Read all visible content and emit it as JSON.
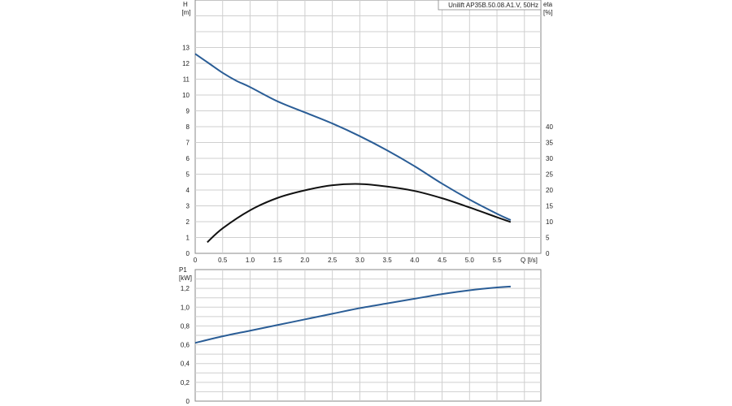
{
  "chart_data": [
    {
      "type": "line",
      "title": "Unilift AP35B.50.08.A1.V, 50Hz",
      "xlabel": "Q [l/s]",
      "ylabel": "H\n[m]",
      "ylabel_right": "eta\n[%]",
      "x_ticks": [
        "0",
        "0.5",
        "1.0",
        "1.5",
        "2.0",
        "2.5",
        "3.0",
        "3.5",
        "4.0",
        "4.5",
        "5.0",
        "5.5"
      ],
      "y_ticks": [
        "0",
        "1",
        "2",
        "3",
        "4",
        "5",
        "6",
        "7",
        "8",
        "9",
        "10",
        "11",
        "12",
        "13"
      ],
      "y2_ticks": [
        "0",
        "5",
        "10",
        "15",
        "20",
        "25",
        "30",
        "35",
        "40"
      ],
      "xlim": [
        0,
        6.3
      ],
      "ylim": [
        0,
        16
      ],
      "y2lim": [
        0,
        80
      ],
      "grid": true,
      "series": [
        {
          "key": "head",
          "axis": "left",
          "color": "#2a5d96",
          "x": [
            0,
            0.25,
            0.5,
            0.75,
            1.0,
            1.5,
            2.0,
            2.5,
            3.0,
            3.5,
            4.0,
            4.5,
            5.0,
            5.5,
            5.75
          ],
          "values": [
            12.6,
            12.0,
            11.4,
            10.9,
            10.5,
            9.6,
            8.9,
            8.2,
            7.4,
            6.5,
            5.5,
            4.4,
            3.4,
            2.5,
            2.1
          ]
        },
        {
          "key": "eta",
          "axis": "right",
          "color": "#111111",
          "x": [
            0.22,
            0.5,
            1.0,
            1.5,
            2.0,
            2.5,
            3.0,
            3.5,
            4.0,
            4.5,
            5.0,
            5.5,
            5.75
          ],
          "values": [
            3.5,
            7.9,
            13.6,
            17.5,
            19.9,
            21.5,
            21.9,
            21.1,
            19.7,
            17.4,
            14.5,
            11.4,
            9.9
          ]
        }
      ]
    },
    {
      "type": "line",
      "title": "",
      "xlabel": "",
      "ylabel": "P1\n[kW]",
      "y_ticks": [
        "0",
        "0,2",
        "0,4",
        "0,6",
        "0,8",
        "1,0",
        "1,2"
      ],
      "xlim": [
        0,
        6.3
      ],
      "ylim": [
        0,
        1.4
      ],
      "grid": true,
      "series": [
        {
          "key": "power",
          "axis": "left",
          "color": "#2a5d96",
          "x": [
            0,
            0.5,
            1.0,
            1.5,
            2.0,
            2.5,
            3.0,
            3.5,
            4.0,
            4.5,
            5.0,
            5.5,
            5.75
          ],
          "values": [
            0.62,
            0.69,
            0.75,
            0.81,
            0.87,
            0.93,
            0.99,
            1.04,
            1.09,
            1.14,
            1.18,
            1.21,
            1.22
          ]
        }
      ]
    }
  ]
}
